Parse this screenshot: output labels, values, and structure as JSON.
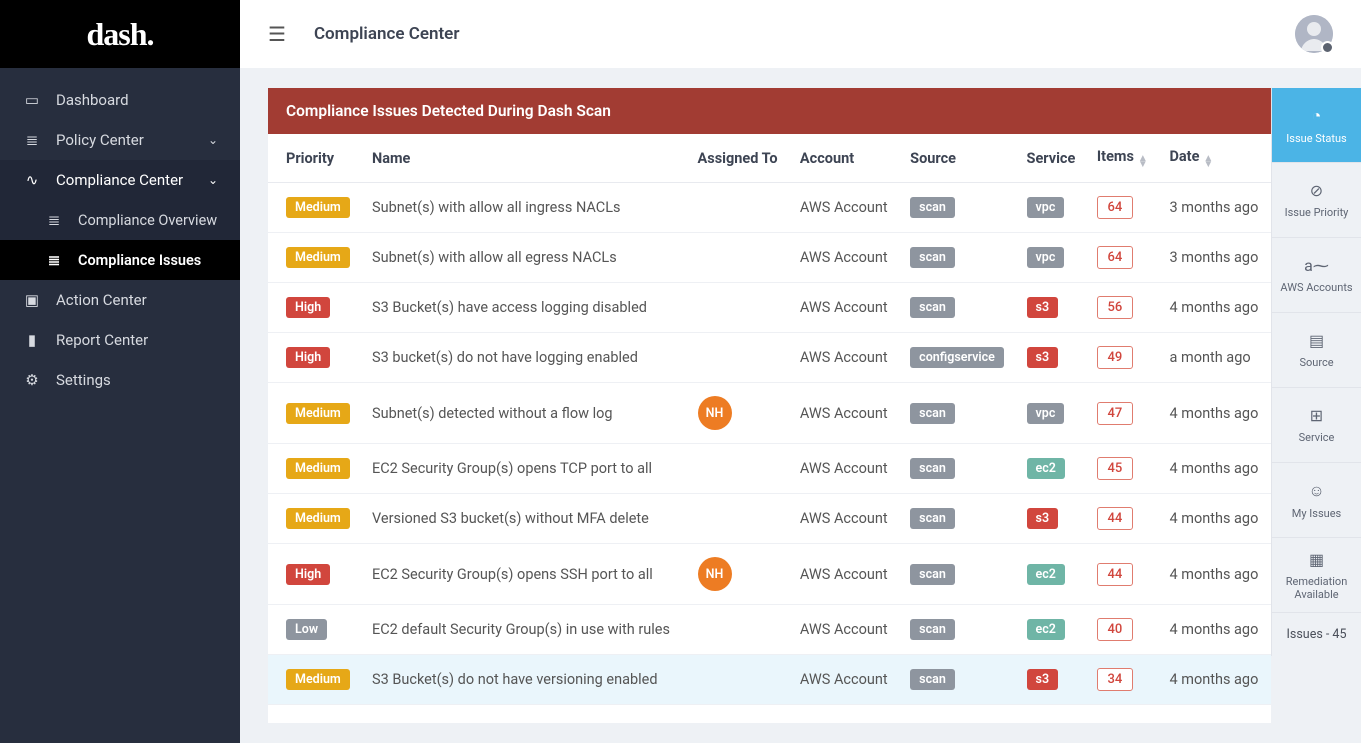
{
  "app": {
    "logo": "dash."
  },
  "topbar": {
    "title": "Compliance Center"
  },
  "sidebar": {
    "items": [
      {
        "icon": "▭",
        "label": "Dashboard"
      },
      {
        "icon": "≣",
        "label": "Policy Center",
        "chev": "⌄"
      },
      {
        "icon": "∿",
        "label": "Compliance Center",
        "chev": "⌄",
        "active": true,
        "sub": [
          {
            "label": "Compliance Overview"
          },
          {
            "label": "Compliance Issues",
            "active": true
          }
        ]
      },
      {
        "icon": "▣",
        "label": "Action Center"
      },
      {
        "icon": "▮",
        "label": "Report Center"
      },
      {
        "icon": "⚙",
        "label": "Settings"
      }
    ]
  },
  "panel_title": "Compliance Issues Detected During Dash Scan",
  "columns": {
    "priority": "Priority",
    "name": "Name",
    "assigned": "Assigned To",
    "account": "Account",
    "source": "Source",
    "service": "Service",
    "items": "Items",
    "date": "Date"
  },
  "rows": [
    {
      "priority": "Medium",
      "name": "Subnet(s) with allow all ingress NACLs",
      "assigned": "",
      "account": "AWS Account",
      "source": "scan",
      "service": "vpc",
      "items": "64",
      "date": "3 months ago"
    },
    {
      "priority": "Medium",
      "name": "Subnet(s) with allow all egress NACLs",
      "assigned": "",
      "account": "AWS Account",
      "source": "scan",
      "service": "vpc",
      "items": "64",
      "date": "3 months ago"
    },
    {
      "priority": "High",
      "name": "S3 Bucket(s) have access logging disabled",
      "assigned": "",
      "account": "AWS Account",
      "source": "scan",
      "service": "s3",
      "items": "56",
      "date": "4 months ago"
    },
    {
      "priority": "High",
      "name": "S3 bucket(s) do not have logging enabled",
      "assigned": "",
      "account": "AWS Account",
      "source": "configservice",
      "service": "s3",
      "items": "49",
      "date": "a month ago"
    },
    {
      "priority": "Medium",
      "name": "Subnet(s) detected without a flow log",
      "assigned": "NH",
      "account": "AWS Account",
      "source": "scan",
      "service": "vpc",
      "items": "47",
      "date": "4 months ago"
    },
    {
      "priority": "Medium",
      "name": "EC2 Security Group(s) opens TCP port to all",
      "assigned": "",
      "account": "AWS Account",
      "source": "scan",
      "service": "ec2",
      "items": "45",
      "date": "4 months ago"
    },
    {
      "priority": "Medium",
      "name": "Versioned S3 bucket(s) without MFA delete",
      "assigned": "",
      "account": "AWS Account",
      "source": "scan",
      "service": "s3",
      "items": "44",
      "date": "4 months ago"
    },
    {
      "priority": "High",
      "name": "EC2 Security Group(s) opens SSH port to all",
      "assigned": "NH",
      "account": "AWS Account",
      "source": "scan",
      "service": "ec2",
      "items": "44",
      "date": "4 months ago"
    },
    {
      "priority": "Low",
      "name": "EC2 default Security Group(s) in use with rules",
      "assigned": "",
      "account": "AWS Account",
      "source": "scan",
      "service": "ec2",
      "items": "40",
      "date": "4 months ago"
    },
    {
      "priority": "Medium",
      "name": "S3 Bucket(s) do not have versioning enabled",
      "assigned": "",
      "account": "AWS Account",
      "source": "scan",
      "service": "s3",
      "items": "34",
      "date": "4 months ago",
      "hover": true
    }
  ],
  "rail": {
    "items": [
      {
        "icon": "◔",
        "label": "Issue Status",
        "active": true
      },
      {
        "icon": "⊘",
        "label": "Issue Priority"
      },
      {
        "icon": "a⁓",
        "label": "AWS Accounts"
      },
      {
        "icon": "▤",
        "label": "Source"
      },
      {
        "icon": "⊞",
        "label": "Service"
      },
      {
        "icon": "☺",
        "label": "My Issues"
      },
      {
        "icon": "▦",
        "label": "Remediation Available"
      }
    ],
    "footer": "Issues - 45"
  },
  "style": {
    "priority_colors": {
      "Medium": "#e6a817",
      "High": "#d1463d",
      "Low": "#8e959f"
    },
    "service_colors": {
      "vpc": "#8e959f",
      "s3": "#d1463d",
      "ec2": "#6fb5a6"
    },
    "panel_header_bg": "#a23c33",
    "sidebar_bg": "#272e3e",
    "rail_active_bg": "#4bb4e6"
  }
}
